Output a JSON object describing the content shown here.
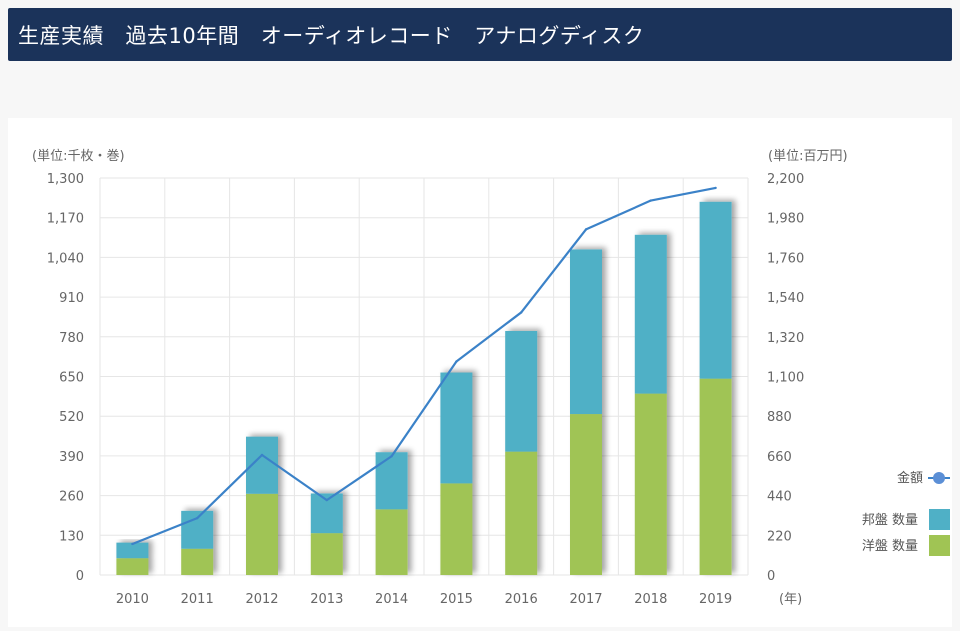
{
  "header": {
    "title": "生産実績　過去10年間　オーディオレコード　アナログディスク"
  },
  "colors": {
    "header_bg": "#1b335a",
    "domestic": "#4fb0c6",
    "foreign": "#a0c454",
    "line": "#3b82c8",
    "grid": "#e6e6e6",
    "axis_text": "#666666"
  },
  "chart_data": {
    "type": "bar+line",
    "categories": [
      "2010",
      "2011",
      "2012",
      "2013",
      "2014",
      "2015",
      "2016",
      "2017",
      "2018",
      "2019"
    ],
    "x_unit": "(年)",
    "left_axis": {
      "unit": "(単位:千枚・巻)",
      "ylim": [
        0,
        1300
      ],
      "ticks": [
        "0",
        "130",
        "260",
        "390",
        "520",
        "650",
        "780",
        "910",
        "1,040",
        "1,170",
        "1,300"
      ]
    },
    "right_axis": {
      "unit": "(単位:百万円)",
      "ylim": [
        0,
        2200
      ],
      "ticks": [
        "0",
        "220",
        "440",
        "660",
        "880",
        "1,100",
        "1,320",
        "1,540",
        "1,760",
        "1,980",
        "2,200"
      ]
    },
    "series": [
      {
        "name": "洋盤 数量",
        "type": "bar",
        "stack": "qty",
        "axis": "left",
        "values": [
          55,
          86,
          266,
          137,
          215,
          300,
          404,
          527,
          594,
          643
        ]
      },
      {
        "name": "邦盤 数量",
        "type": "bar",
        "stack": "qty",
        "axis": "left",
        "values": [
          51,
          124,
          187,
          130,
          187,
          363,
          395,
          539,
          520,
          579
        ]
      },
      {
        "name": "金額",
        "type": "line",
        "axis": "right",
        "values": [
          172,
          315,
          665,
          415,
          658,
          1183,
          1455,
          1915,
          2075,
          2145
        ]
      }
    ],
    "legend_position": "right",
    "grid": true
  }
}
